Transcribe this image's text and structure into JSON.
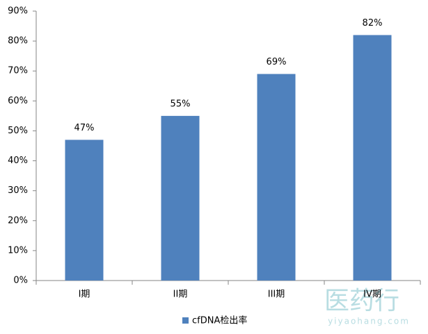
{
  "chart_data": {
    "type": "bar",
    "categories": [
      "I期",
      "II期",
      "III期",
      "IV期"
    ],
    "series": [
      {
        "name": "cfDNA检出率",
        "color": "#4f81bd",
        "values": [
          47,
          55,
          69,
          82
        ],
        "value_labels": [
          "47%",
          "55%",
          "69%",
          "82%"
        ]
      }
    ],
    "ylim": [
      0,
      90
    ],
    "yticks": [
      {
        "value": 0,
        "label": "0%"
      },
      {
        "value": 10,
        "label": "10%"
      },
      {
        "value": 20,
        "label": "20%"
      },
      {
        "value": 30,
        "label": "30%"
      },
      {
        "value": 40,
        "label": "40%"
      },
      {
        "value": 50,
        "label": "50%"
      },
      {
        "value": 60,
        "label": "60%"
      },
      {
        "value": 70,
        "label": "70%"
      },
      {
        "value": 80,
        "label": "80%"
      },
      {
        "value": 90,
        "label": "90%"
      }
    ],
    "grid": false,
    "legend": "bottom"
  },
  "watermark": {
    "title": "医药行",
    "subtitle": "yiyaohang.com"
  }
}
